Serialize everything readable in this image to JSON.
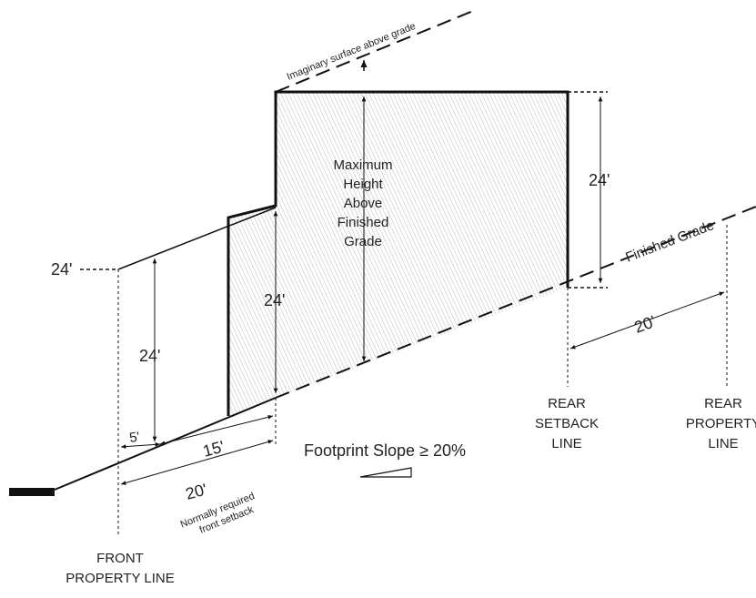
{
  "labels": {
    "imaginary_surface": "Imaginary surface above grade",
    "max_height": [
      "Maximum",
      "Height",
      "Above",
      "Finished",
      "Grade"
    ],
    "finished_grade": "Finished Grade",
    "footprint_slope": "Footprint Slope ≥ 20%",
    "front_property_line": [
      "FRONT",
      "PROPERTY LINE"
    ],
    "rear_setback_line": [
      "REAR",
      "SETBACK",
      "LINE"
    ],
    "rear_property_line": [
      "REAR",
      "PROPERTY",
      "LINE"
    ],
    "normally_required": [
      "Normally required",
      "front setback"
    ]
  },
  "dimensions": {
    "left_height_label": "24'",
    "front_height": "24'",
    "mid_height": "24'",
    "rear_height": "24'",
    "rear_setback_dist": "20'",
    "front_5": "5'",
    "front_15": "15'",
    "front_20": "20'"
  },
  "colors": {
    "line": "#111111",
    "hatch": "#bdbdbd"
  }
}
